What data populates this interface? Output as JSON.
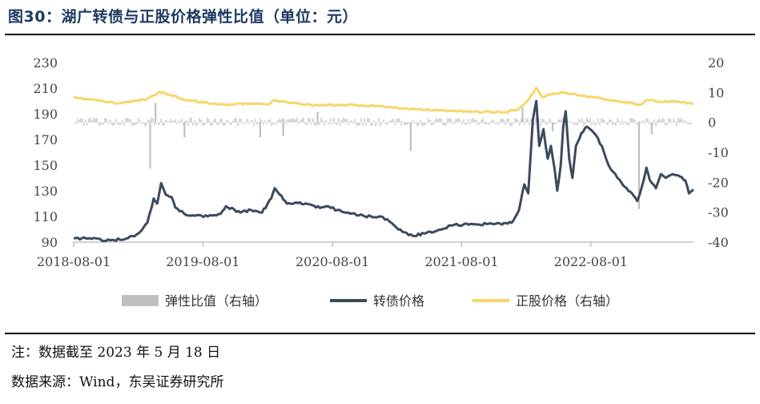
{
  "header": {
    "title": "图30：湖广转债与正股价格弹性比值（单位：元）"
  },
  "footer": {
    "note": "注：数据截至 2023 年 5 月 18 日",
    "source": "数据来源：Wind，东吴证券研究所"
  },
  "chart_data": {
    "type": "line",
    "title": "图30：湖广转债与正股价格弹性比值（单位：元）",
    "x_range": [
      "2018-08-01",
      "2023-05-18"
    ],
    "x_ticks": [
      "2018-08-01",
      "2019-08-01",
      "2020-08-01",
      "2021-08-01",
      "2022-08-01"
    ],
    "left_axis": {
      "ylim": [
        90,
        230
      ],
      "ticks": [
        90,
        110,
        130,
        150,
        170,
        190,
        210,
        230
      ]
    },
    "right_axis": {
      "ylim": [
        -40,
        20
      ],
      "ticks": [
        -40,
        -30,
        -20,
        -10,
        0,
        10,
        20
      ]
    },
    "grid": false,
    "legend_position": "bottom",
    "colors": {
      "elasticity": "#bfbfbf",
      "bond": "#3b4a5e",
      "stock": "#f7d66b"
    },
    "series": [
      {
        "name": "弹性比值（右轴）",
        "axis": "right",
        "type": "bar",
        "baseline": 0,
        "spikes": [
          {
            "x": "2019-03-05",
            "y": -15.5
          },
          {
            "x": "2019-03-20",
            "y": 6.5
          },
          {
            "x": "2019-06-10",
            "y": -5
          },
          {
            "x": "2020-01-10",
            "y": -5
          },
          {
            "x": "2020-03-15",
            "y": -4.5
          },
          {
            "x": "2020-06-20",
            "y": 3.5
          },
          {
            "x": "2021-03-10",
            "y": -9.5
          },
          {
            "x": "2022-01-20",
            "y": 5
          },
          {
            "x": "2022-04-15",
            "y": -3
          },
          {
            "x": "2022-12-15",
            "y": -29
          },
          {
            "x": "2023-01-20",
            "y": -4
          }
        ]
      },
      {
        "name": "转债价格",
        "axis": "left",
        "type": "line",
        "points": [
          {
            "x": "2018-08-01",
            "y": 93
          },
          {
            "x": "2018-09-15",
            "y": 93
          },
          {
            "x": "2018-11-01",
            "y": 91
          },
          {
            "x": "2019-01-01",
            "y": 93
          },
          {
            "x": "2019-02-01",
            "y": 97
          },
          {
            "x": "2019-02-25",
            "y": 105
          },
          {
            "x": "2019-03-15",
            "y": 124
          },
          {
            "x": "2019-03-25",
            "y": 120
          },
          {
            "x": "2019-04-05",
            "y": 136
          },
          {
            "x": "2019-04-18",
            "y": 127
          },
          {
            "x": "2019-05-05",
            "y": 125
          },
          {
            "x": "2019-05-15",
            "y": 117
          },
          {
            "x": "2019-06-15",
            "y": 111
          },
          {
            "x": "2019-07-15",
            "y": 111
          },
          {
            "x": "2019-08-15",
            "y": 110
          },
          {
            "x": "2019-09-20",
            "y": 112
          },
          {
            "x": "2019-10-05",
            "y": 118
          },
          {
            "x": "2019-11-15",
            "y": 113
          },
          {
            "x": "2019-12-15",
            "y": 115
          },
          {
            "x": "2020-01-15",
            "y": 113
          },
          {
            "x": "2020-02-10",
            "y": 124
          },
          {
            "x": "2020-02-20",
            "y": 132
          },
          {
            "x": "2020-03-05",
            "y": 127
          },
          {
            "x": "2020-03-25",
            "y": 120
          },
          {
            "x": "2020-05-01",
            "y": 121
          },
          {
            "x": "2020-06-15",
            "y": 117
          },
          {
            "x": "2020-07-15",
            "y": 118
          },
          {
            "x": "2020-08-15",
            "y": 115
          },
          {
            "x": "2020-09-15",
            "y": 113
          },
          {
            "x": "2020-11-01",
            "y": 110
          },
          {
            "x": "2020-12-15",
            "y": 110
          },
          {
            "x": "2021-01-15",
            "y": 105
          },
          {
            "x": "2021-02-15",
            "y": 98
          },
          {
            "x": "2021-03-15",
            "y": 95
          },
          {
            "x": "2021-05-15",
            "y": 98
          },
          {
            "x": "2021-07-01",
            "y": 103
          },
          {
            "x": "2021-09-01",
            "y": 104
          },
          {
            "x": "2021-11-01",
            "y": 104
          },
          {
            "x": "2021-12-20",
            "y": 105
          },
          {
            "x": "2022-01-10",
            "y": 115
          },
          {
            "x": "2022-01-25",
            "y": 135
          },
          {
            "x": "2022-02-05",
            "y": 128
          },
          {
            "x": "2022-02-18",
            "y": 185
          },
          {
            "x": "2022-02-28",
            "y": 200
          },
          {
            "x": "2022-03-08",
            "y": 165
          },
          {
            "x": "2022-03-20",
            "y": 178
          },
          {
            "x": "2022-04-01",
            "y": 155
          },
          {
            "x": "2022-04-10",
            "y": 165
          },
          {
            "x": "2022-04-20",
            "y": 148
          },
          {
            "x": "2022-04-28",
            "y": 130
          },
          {
            "x": "2022-05-08",
            "y": 150
          },
          {
            "x": "2022-05-15",
            "y": 180
          },
          {
            "x": "2022-05-22",
            "y": 192
          },
          {
            "x": "2022-06-01",
            "y": 155
          },
          {
            "x": "2022-06-10",
            "y": 140
          },
          {
            "x": "2022-06-20",
            "y": 165
          },
          {
            "x": "2022-07-05",
            "y": 175
          },
          {
            "x": "2022-07-20",
            "y": 180
          },
          {
            "x": "2022-08-10",
            "y": 175
          },
          {
            "x": "2022-09-01",
            "y": 165
          },
          {
            "x": "2022-09-20",
            "y": 150
          },
          {
            "x": "2022-10-15",
            "y": 140
          },
          {
            "x": "2022-11-05",
            "y": 133
          },
          {
            "x": "2022-11-25",
            "y": 128
          },
          {
            "x": "2022-12-10",
            "y": 122
          },
          {
            "x": "2022-12-22",
            "y": 132
          },
          {
            "x": "2023-01-05",
            "y": 148
          },
          {
            "x": "2023-01-15",
            "y": 138
          },
          {
            "x": "2023-02-01",
            "y": 132
          },
          {
            "x": "2023-02-15",
            "y": 143
          },
          {
            "x": "2023-03-01",
            "y": 140
          },
          {
            "x": "2023-03-20",
            "y": 143
          },
          {
            "x": "2023-04-10",
            "y": 141
          },
          {
            "x": "2023-04-25",
            "y": 138
          },
          {
            "x": "2023-05-05",
            "y": 128
          },
          {
            "x": "2023-05-18",
            "y": 131
          }
        ]
      },
      {
        "name": "正股价格（右轴）",
        "axis": "right",
        "type": "line",
        "points": [
          {
            "x": "2018-08-01",
            "y": 8.2
          },
          {
            "x": "2018-10-01",
            "y": 7.5
          },
          {
            "x": "2018-12-01",
            "y": 6.3
          },
          {
            "x": "2019-01-15",
            "y": 7.0
          },
          {
            "x": "2019-02-25",
            "y": 7.8
          },
          {
            "x": "2019-04-01",
            "y": 10.2
          },
          {
            "x": "2019-05-01",
            "y": 9.2
          },
          {
            "x": "2019-06-15",
            "y": 7.5
          },
          {
            "x": "2019-08-15",
            "y": 6.5
          },
          {
            "x": "2019-10-01",
            "y": 6.0
          },
          {
            "x": "2019-12-15",
            "y": 6.2
          },
          {
            "x": "2020-02-01",
            "y": 6.0
          },
          {
            "x": "2020-02-20",
            "y": 7.5
          },
          {
            "x": "2020-03-25",
            "y": 6.8
          },
          {
            "x": "2020-06-01",
            "y": 5.8
          },
          {
            "x": "2020-09-01",
            "y": 5.8
          },
          {
            "x": "2020-12-01",
            "y": 5.5
          },
          {
            "x": "2021-03-01",
            "y": 4.5
          },
          {
            "x": "2021-06-01",
            "y": 4.0
          },
          {
            "x": "2021-09-01",
            "y": 3.6
          },
          {
            "x": "2021-12-01",
            "y": 3.4
          },
          {
            "x": "2022-01-10",
            "y": 4.5
          },
          {
            "x": "2022-02-01",
            "y": 7.0
          },
          {
            "x": "2022-02-20",
            "y": 10.0
          },
          {
            "x": "2022-02-28",
            "y": 11.5
          },
          {
            "x": "2022-03-15",
            "y": 8.5
          },
          {
            "x": "2022-04-15",
            "y": 9.5
          },
          {
            "x": "2022-05-20",
            "y": 10.0
          },
          {
            "x": "2022-07-01",
            "y": 9.0
          },
          {
            "x": "2022-09-01",
            "y": 8.0
          },
          {
            "x": "2022-11-01",
            "y": 6.8
          },
          {
            "x": "2022-12-20",
            "y": 6.0
          },
          {
            "x": "2023-01-10",
            "y": 7.5
          },
          {
            "x": "2023-02-15",
            "y": 6.8
          },
          {
            "x": "2023-04-01",
            "y": 7.0
          },
          {
            "x": "2023-05-18",
            "y": 6.2
          }
        ]
      }
    ]
  }
}
